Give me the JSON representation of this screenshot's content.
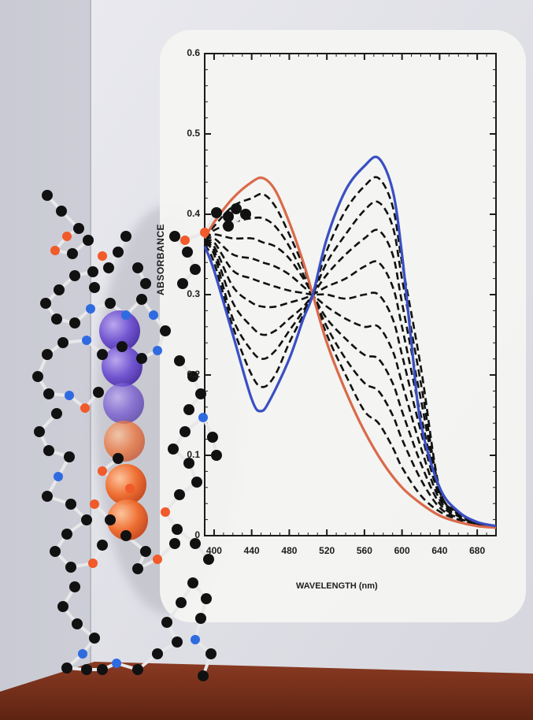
{
  "chart_data": {
    "type": "line",
    "xlabel": "WAVELENGTH (nm)",
    "ylabel": "ABSORBANCE",
    "xlim": [
      390,
      700
    ],
    "ylim": [
      0,
      0.6
    ],
    "xticks": [
      "400",
      "440",
      "480",
      "520",
      "560",
      "600",
      "640",
      "680"
    ],
    "yticks": [
      "0",
      "0.1",
      "0.2",
      "0.3",
      "0.4",
      "0.5",
      "0.6"
    ],
    "grid": false,
    "legend": "none",
    "isosbestic_point": {
      "x": 505,
      "y": 0.3
    },
    "series": [
      {
        "style": "solid",
        "color": "#d96a4a",
        "points": [
          [
            390,
            0.37
          ],
          [
            400,
            0.39
          ],
          [
            420,
            0.42
          ],
          [
            440,
            0.44
          ],
          [
            452,
            0.445
          ],
          [
            465,
            0.43
          ],
          [
            480,
            0.39
          ],
          [
            495,
            0.34
          ],
          [
            505,
            0.3
          ],
          [
            520,
            0.24
          ],
          [
            540,
            0.18
          ],
          [
            560,
            0.13
          ],
          [
            580,
            0.09
          ],
          [
            600,
            0.06
          ],
          [
            620,
            0.04
          ],
          [
            640,
            0.025
          ],
          [
            660,
            0.017
          ],
          [
            680,
            0.012
          ],
          [
            700,
            0.01
          ]
        ]
      },
      {
        "style": "solid",
        "color": "#3a4fc4",
        "points": [
          [
            390,
            0.36
          ],
          [
            400,
            0.33
          ],
          [
            420,
            0.25
          ],
          [
            440,
            0.17
          ],
          [
            450,
            0.155
          ],
          [
            460,
            0.17
          ],
          [
            480,
            0.22
          ],
          [
            495,
            0.27
          ],
          [
            505,
            0.3
          ],
          [
            520,
            0.37
          ],
          [
            540,
            0.43
          ],
          [
            560,
            0.46
          ],
          [
            575,
            0.47
          ],
          [
            590,
            0.43
          ],
          [
            600,
            0.35
          ],
          [
            610,
            0.24
          ],
          [
            620,
            0.14
          ],
          [
            640,
            0.06
          ],
          [
            660,
            0.03
          ],
          [
            680,
            0.017
          ],
          [
            700,
            0.012
          ]
        ]
      },
      {
        "style": "dashed",
        "color": "#111111",
        "points": [
          [
            390,
            0.37
          ],
          [
            400,
            0.385
          ],
          [
            420,
            0.41
          ],
          [
            440,
            0.42
          ],
          [
            452,
            0.425
          ],
          [
            465,
            0.41
          ],
          [
            480,
            0.375
          ],
          [
            495,
            0.335
          ],
          [
            505,
            0.3
          ],
          [
            520,
            0.25
          ],
          [
            540,
            0.2
          ],
          [
            560,
            0.155
          ],
          [
            575,
            0.14
          ],
          [
            590,
            0.11
          ],
          [
            600,
            0.085
          ],
          [
            620,
            0.05
          ],
          [
            640,
            0.03
          ],
          [
            660,
            0.02
          ],
          [
            680,
            0.014
          ],
          [
            700,
            0.01
          ]
        ]
      },
      {
        "style": "dashed",
        "color": "#111111",
        "points": [
          [
            390,
            0.37
          ],
          [
            400,
            0.38
          ],
          [
            420,
            0.39
          ],
          [
            440,
            0.395
          ],
          [
            452,
            0.395
          ],
          [
            465,
            0.385
          ],
          [
            480,
            0.36
          ],
          [
            495,
            0.325
          ],
          [
            505,
            0.3
          ],
          [
            520,
            0.26
          ],
          [
            540,
            0.22
          ],
          [
            560,
            0.19
          ],
          [
            575,
            0.18
          ],
          [
            590,
            0.15
          ],
          [
            600,
            0.12
          ],
          [
            620,
            0.07
          ],
          [
            640,
            0.035
          ],
          [
            660,
            0.022
          ],
          [
            680,
            0.014
          ],
          [
            700,
            0.01
          ]
        ]
      },
      {
        "style": "dashed",
        "color": "#111111",
        "points": [
          [
            390,
            0.37
          ],
          [
            400,
            0.375
          ],
          [
            420,
            0.37
          ],
          [
            440,
            0.37
          ],
          [
            452,
            0.365
          ],
          [
            465,
            0.36
          ],
          [
            480,
            0.345
          ],
          [
            495,
            0.32
          ],
          [
            505,
            0.3
          ],
          [
            520,
            0.27
          ],
          [
            540,
            0.245
          ],
          [
            560,
            0.225
          ],
          [
            575,
            0.22
          ],
          [
            590,
            0.19
          ],
          [
            600,
            0.155
          ],
          [
            620,
            0.09
          ],
          [
            640,
            0.04
          ],
          [
            660,
            0.024
          ],
          [
            680,
            0.015
          ],
          [
            700,
            0.011
          ]
        ]
      },
      {
        "style": "dashed",
        "color": "#111111",
        "points": [
          [
            390,
            0.368
          ],
          [
            400,
            0.37
          ],
          [
            420,
            0.35
          ],
          [
            440,
            0.345
          ],
          [
            452,
            0.34
          ],
          [
            465,
            0.335
          ],
          [
            480,
            0.325
          ],
          [
            495,
            0.31
          ],
          [
            505,
            0.3
          ],
          [
            520,
            0.285
          ],
          [
            540,
            0.27
          ],
          [
            560,
            0.26
          ],
          [
            575,
            0.26
          ],
          [
            590,
            0.23
          ],
          [
            600,
            0.19
          ],
          [
            620,
            0.11
          ],
          [
            640,
            0.045
          ],
          [
            660,
            0.026
          ],
          [
            680,
            0.015
          ],
          [
            700,
            0.011
          ]
        ]
      },
      {
        "style": "dashed",
        "color": "#111111",
        "points": [
          [
            390,
            0.366
          ],
          [
            400,
            0.365
          ],
          [
            420,
            0.33
          ],
          [
            440,
            0.32
          ],
          [
            452,
            0.315
          ],
          [
            465,
            0.31
          ],
          [
            480,
            0.305
          ],
          [
            495,
            0.302
          ],
          [
            505,
            0.3
          ],
          [
            520,
            0.3
          ],
          [
            540,
            0.295
          ],
          [
            560,
            0.3
          ],
          [
            575,
            0.3
          ],
          [
            590,
            0.27
          ],
          [
            600,
            0.225
          ],
          [
            620,
            0.13
          ],
          [
            640,
            0.05
          ],
          [
            660,
            0.027
          ],
          [
            680,
            0.016
          ],
          [
            700,
            0.011
          ]
        ]
      },
      {
        "style": "dashed",
        "color": "#111111",
        "points": [
          [
            390,
            0.365
          ],
          [
            400,
            0.36
          ],
          [
            420,
            0.31
          ],
          [
            440,
            0.29
          ],
          [
            452,
            0.285
          ],
          [
            465,
            0.285
          ],
          [
            480,
            0.29
          ],
          [
            495,
            0.295
          ],
          [
            505,
            0.3
          ],
          [
            520,
            0.31
          ],
          [
            540,
            0.32
          ],
          [
            560,
            0.335
          ],
          [
            575,
            0.34
          ],
          [
            590,
            0.31
          ],
          [
            600,
            0.26
          ],
          [
            620,
            0.15
          ],
          [
            640,
            0.053
          ],
          [
            660,
            0.028
          ],
          [
            680,
            0.016
          ],
          [
            700,
            0.011
          ]
        ]
      },
      {
        "style": "dashed",
        "color": "#111111",
        "points": [
          [
            390,
            0.364
          ],
          [
            400,
            0.355
          ],
          [
            420,
            0.29
          ],
          [
            440,
            0.26
          ],
          [
            452,
            0.25
          ],
          [
            465,
            0.255
          ],
          [
            480,
            0.27
          ],
          [
            495,
            0.285
          ],
          [
            505,
            0.3
          ],
          [
            520,
            0.325
          ],
          [
            540,
            0.35
          ],
          [
            560,
            0.37
          ],
          [
            575,
            0.38
          ],
          [
            590,
            0.35
          ],
          [
            600,
            0.29
          ],
          [
            620,
            0.17
          ],
          [
            640,
            0.055
          ],
          [
            660,
            0.029
          ],
          [
            680,
            0.016
          ],
          [
            700,
            0.011
          ]
        ]
      },
      {
        "style": "dashed",
        "color": "#111111",
        "points": [
          [
            390,
            0.363
          ],
          [
            400,
            0.35
          ],
          [
            420,
            0.27
          ],
          [
            440,
            0.23
          ],
          [
            452,
            0.22
          ],
          [
            465,
            0.23
          ],
          [
            480,
            0.255
          ],
          [
            495,
            0.28
          ],
          [
            505,
            0.3
          ],
          [
            520,
            0.34
          ],
          [
            540,
            0.375
          ],
          [
            560,
            0.405
          ],
          [
            575,
            0.415
          ],
          [
            590,
            0.385
          ],
          [
            600,
            0.32
          ],
          [
            620,
            0.19
          ],
          [
            640,
            0.057
          ],
          [
            660,
            0.03
          ],
          [
            680,
            0.017
          ],
          [
            700,
            0.012
          ]
        ]
      },
      {
        "style": "dashed",
        "color": "#111111",
        "points": [
          [
            390,
            0.362
          ],
          [
            400,
            0.34
          ],
          [
            420,
            0.26
          ],
          [
            440,
            0.2
          ],
          [
            452,
            0.185
          ],
          [
            465,
            0.2
          ],
          [
            480,
            0.24
          ],
          [
            495,
            0.275
          ],
          [
            505,
            0.3
          ],
          [
            520,
            0.355
          ],
          [
            540,
            0.405
          ],
          [
            560,
            0.435
          ],
          [
            575,
            0.445
          ],
          [
            590,
            0.41
          ],
          [
            600,
            0.34
          ],
          [
            620,
            0.21
          ],
          [
            640,
            0.058
          ],
          [
            660,
            0.03
          ],
          [
            680,
            0.017
          ],
          [
            700,
            0.012
          ]
        ]
      }
    ]
  }
}
